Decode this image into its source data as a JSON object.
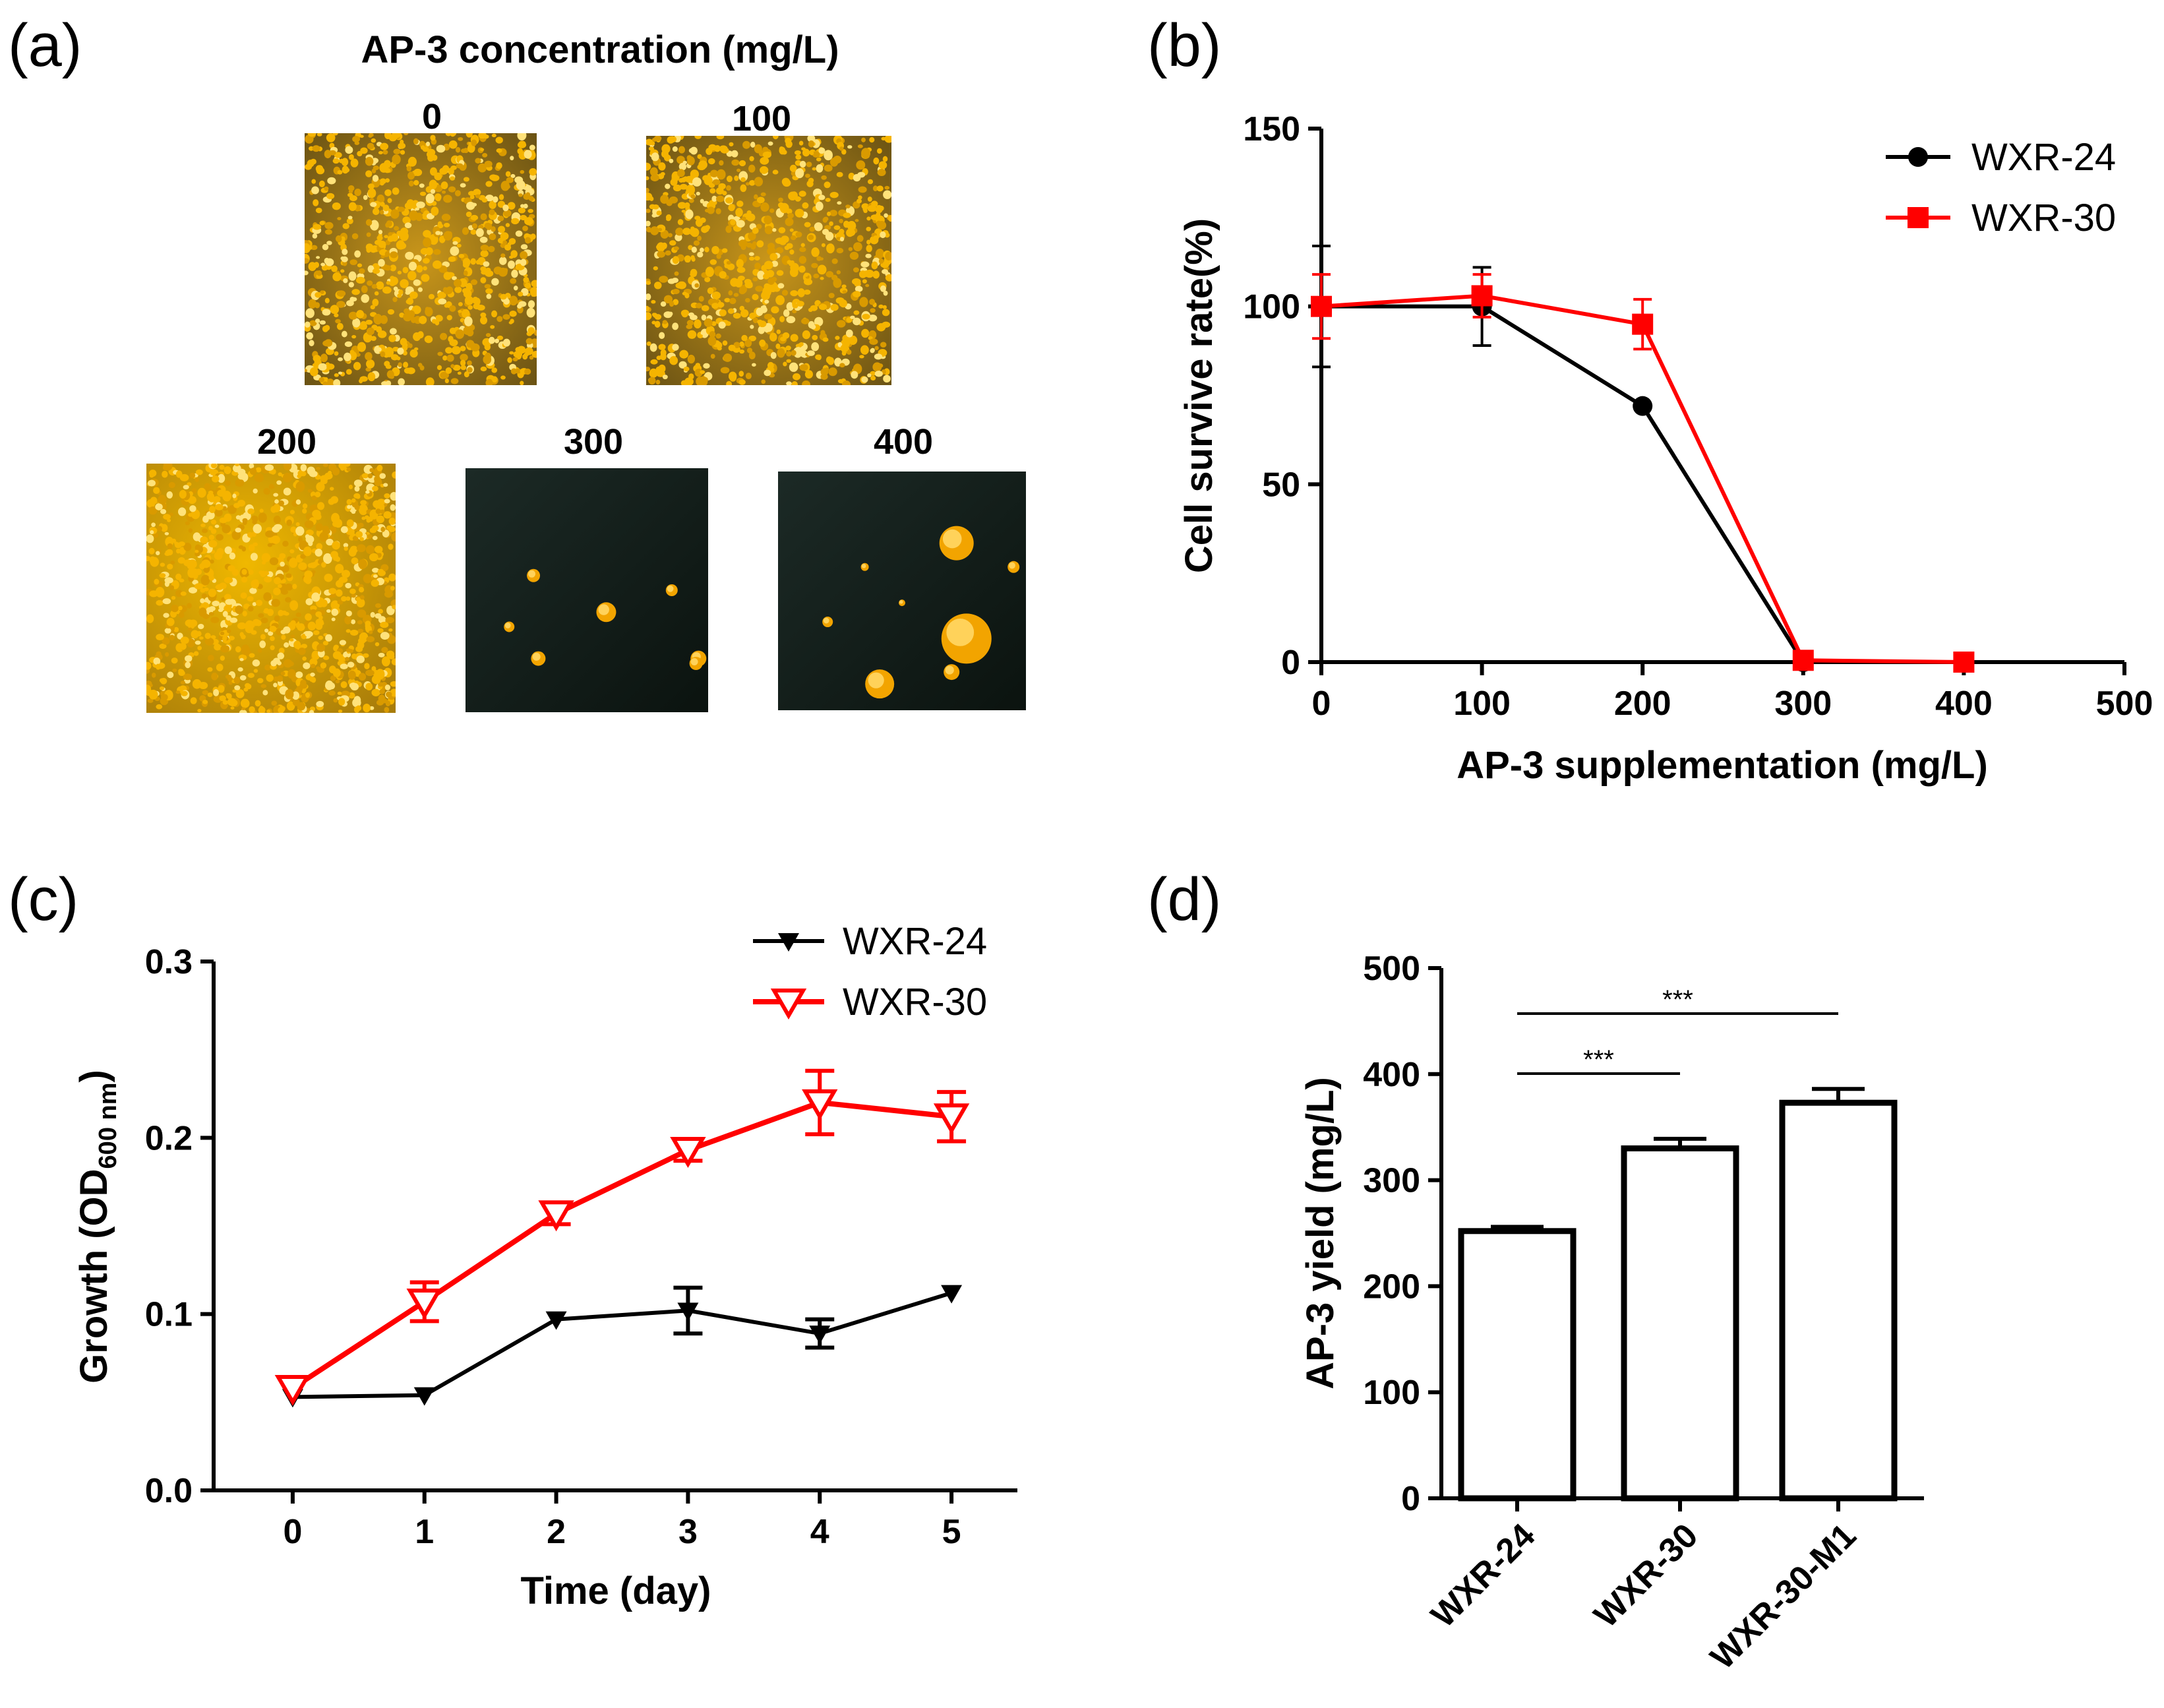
{
  "panels": {
    "a": {
      "label": "(a)",
      "title": "AP-3 concentration (mg/L)",
      "photos": [
        {
          "label": "0",
          "type": "dense"
        },
        {
          "label": "100",
          "type": "dense"
        },
        {
          "label": "200",
          "type": "dense-bright"
        },
        {
          "label": "300",
          "type": "sparse"
        },
        {
          "label": "400",
          "type": "sparse-large"
        }
      ],
      "colors": {
        "colony": "#f5b400",
        "background_light": "#8a6a10",
        "background_dark": "#0e1a14"
      }
    },
    "b": {
      "label": "(b)"
    },
    "c": {
      "label": "(c)"
    },
    "d": {
      "label": "(d)"
    }
  },
  "chart_data": [
    {
      "id": "b",
      "type": "line",
      "title": "",
      "xlabel": "AP-3 supplementation (mg/L)",
      "ylabel": "Cell survive rate(%)",
      "xlim": [
        0,
        500
      ],
      "ylim": [
        0,
        150
      ],
      "xticks": [
        0,
        100,
        200,
        300,
        400,
        500
      ],
      "yticks": [
        0,
        50,
        100,
        150
      ],
      "legend_position": "top-right",
      "series": [
        {
          "name": "WXR-24",
          "color": "#000000",
          "marker": "circle",
          "x": [
            0,
            100,
            200,
            300,
            400
          ],
          "y": [
            100,
            100,
            72,
            0,
            0
          ],
          "err": [
            17,
            11,
            0,
            0,
            0
          ]
        },
        {
          "name": "WXR-30",
          "color": "#ff0000",
          "marker": "square",
          "x": [
            0,
            100,
            200,
            300,
            400
          ],
          "y": [
            100,
            103,
            95,
            0.5,
            0
          ],
          "err": [
            9,
            6,
            7,
            0,
            0
          ]
        }
      ]
    },
    {
      "id": "c",
      "type": "line",
      "title": "",
      "xlabel": "Time (day)",
      "ylabel": "Growth (OD",
      "ylabel_sub": "600 nm",
      "ylabel_end": ")",
      "xlim": [
        -0.6,
        5.5
      ],
      "ylim": [
        0.0,
        0.3
      ],
      "xticks": [
        0,
        1,
        2,
        3,
        4,
        5
      ],
      "yticks": [
        "0.0",
        "0.1",
        "0.2",
        "0.3"
      ],
      "legend_position": "top-right",
      "series": [
        {
          "name": "WXR-24",
          "color": "#000000",
          "marker": "triangle-down-filled",
          "x": [
            0,
            1,
            2,
            3,
            4,
            5
          ],
          "y": [
            0.053,
            0.054,
            0.097,
            0.102,
            0.089,
            0.112
          ],
          "err": [
            0,
            0,
            0,
            0.013,
            0.008,
            0
          ]
        },
        {
          "name": "WXR-30",
          "color": "#ff0000",
          "marker": "triangle-down-open",
          "x": [
            0,
            1,
            2,
            3,
            4,
            5
          ],
          "y": [
            0.058,
            0.107,
            0.157,
            0.193,
            0.22,
            0.212
          ],
          "err": [
            0,
            0.011,
            0.006,
            0.006,
            0.018,
            0.014
          ]
        }
      ]
    },
    {
      "id": "d",
      "type": "bar",
      "title": "",
      "xlabel": "",
      "ylabel": "AP-3 yield (mg/L)",
      "ylim": [
        0,
        500
      ],
      "yticks": [
        0,
        100,
        200,
        300,
        400,
        500
      ],
      "categories": [
        "WXR-24",
        "WXR-30",
        "WXR-30-M1"
      ],
      "values": [
        252,
        330,
        373
      ],
      "errors": [
        4,
        9,
        13
      ],
      "significance": [
        {
          "from": 0,
          "to": 1,
          "label": "***"
        },
        {
          "from": 0,
          "to": 2,
          "label": "***"
        }
      ]
    }
  ]
}
